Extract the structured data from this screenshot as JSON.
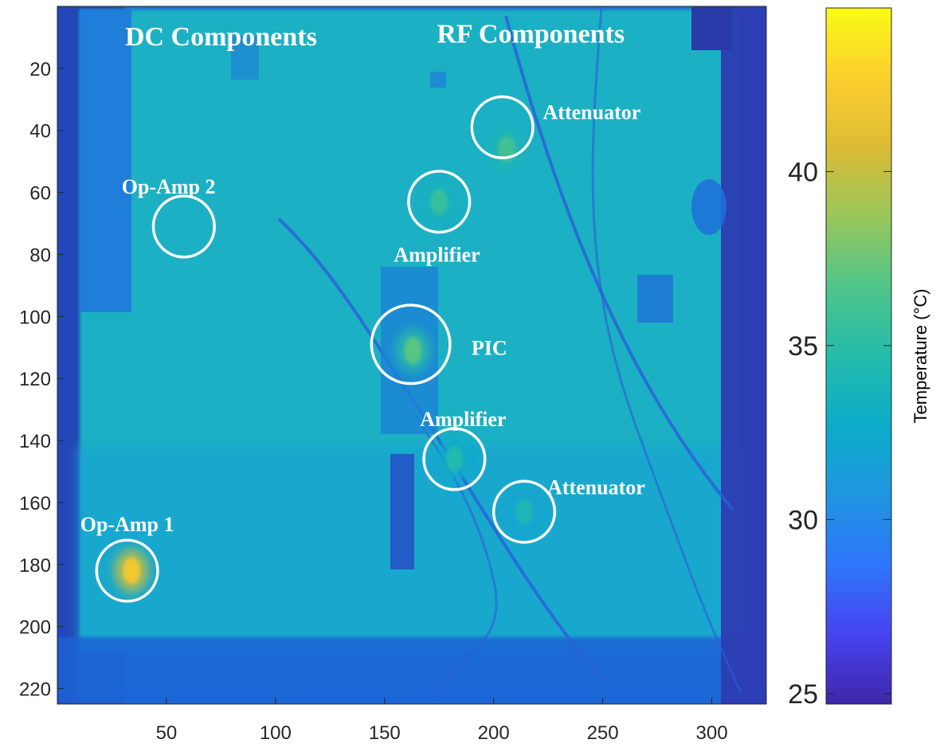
{
  "chart_data": {
    "type": "heatmap",
    "title": "",
    "xlabel": "",
    "ylabel": "",
    "x_range": [
      0,
      325
    ],
    "y_range": [
      0,
      225
    ],
    "y_direction": "reversed",
    "x_ticks": [
      50,
      100,
      150,
      200,
      250,
      300
    ],
    "y_ticks": [
      20,
      40,
      60,
      80,
      100,
      120,
      140,
      160,
      180,
      200,
      220
    ],
    "colorbar": {
      "label": "Temperature (°C)",
      "range": [
        24.7,
        44.7
      ],
      "ticks": [
        25,
        30,
        35,
        40
      ],
      "colormap": [
        "#3e26a8",
        "#4743f1",
        "#2f76fb",
        "#1f95e0",
        "#0bacc9",
        "#24bbab",
        "#4fc589",
        "#99c65b",
        "#dcbc35",
        "#fcce2e",
        "#f9fb15"
      ]
    },
    "group_labels": [
      {
        "text": "DC Components",
        "x": 75,
        "y": 8
      },
      {
        "text": "RF Components",
        "x": 217,
        "y": 7
      }
    ],
    "annotations": [
      {
        "label": "Attenuator",
        "x": 204,
        "y": 39,
        "r": 14,
        "label_x": 245,
        "label_y": 34
      },
      {
        "label": "Op-Amp 2",
        "x": 58,
        "y": 71,
        "r": 14,
        "label_x": 51,
        "label_y": 58
      },
      {
        "label": "Amplifier",
        "x": 175,
        "y": 63,
        "r": 14,
        "label_x": 174,
        "label_y": 80
      },
      {
        "label": "PIC",
        "x": 162,
        "y": 109,
        "r": 18,
        "label_x": 198,
        "label_y": 110
      },
      {
        "label": "Amplifier",
        "x": 182,
        "y": 146,
        "r": 14,
        "label_x": 186,
        "label_y": 133
      },
      {
        "label": "Attenuator",
        "x": 214,
        "y": 163,
        "r": 14,
        "label_x": 247,
        "label_y": 155
      },
      {
        "label": "Op-Amp 1",
        "x": 32,
        "y": 182,
        "r": 14,
        "label_x": 32,
        "label_y": 167
      }
    ],
    "hotspots_celsius": [
      {
        "name": "Op-Amp 1",
        "x": 34,
        "y": 182,
        "value": 42
      },
      {
        "name": "PIC",
        "x": 163,
        "y": 111,
        "value": 37
      },
      {
        "name": "Amplifier",
        "x": 175,
        "y": 63,
        "value": 35.5
      },
      {
        "name": "Amplifier",
        "x": 182,
        "y": 146,
        "value": 34.5
      },
      {
        "name": "Attenuator",
        "x": 206,
        "y": 46,
        "value": 36
      },
      {
        "name": "Attenuator",
        "x": 214,
        "y": 163,
        "value": 34
      }
    ],
    "background_celsius": 33.5,
    "border_celsius": 27.5
  }
}
